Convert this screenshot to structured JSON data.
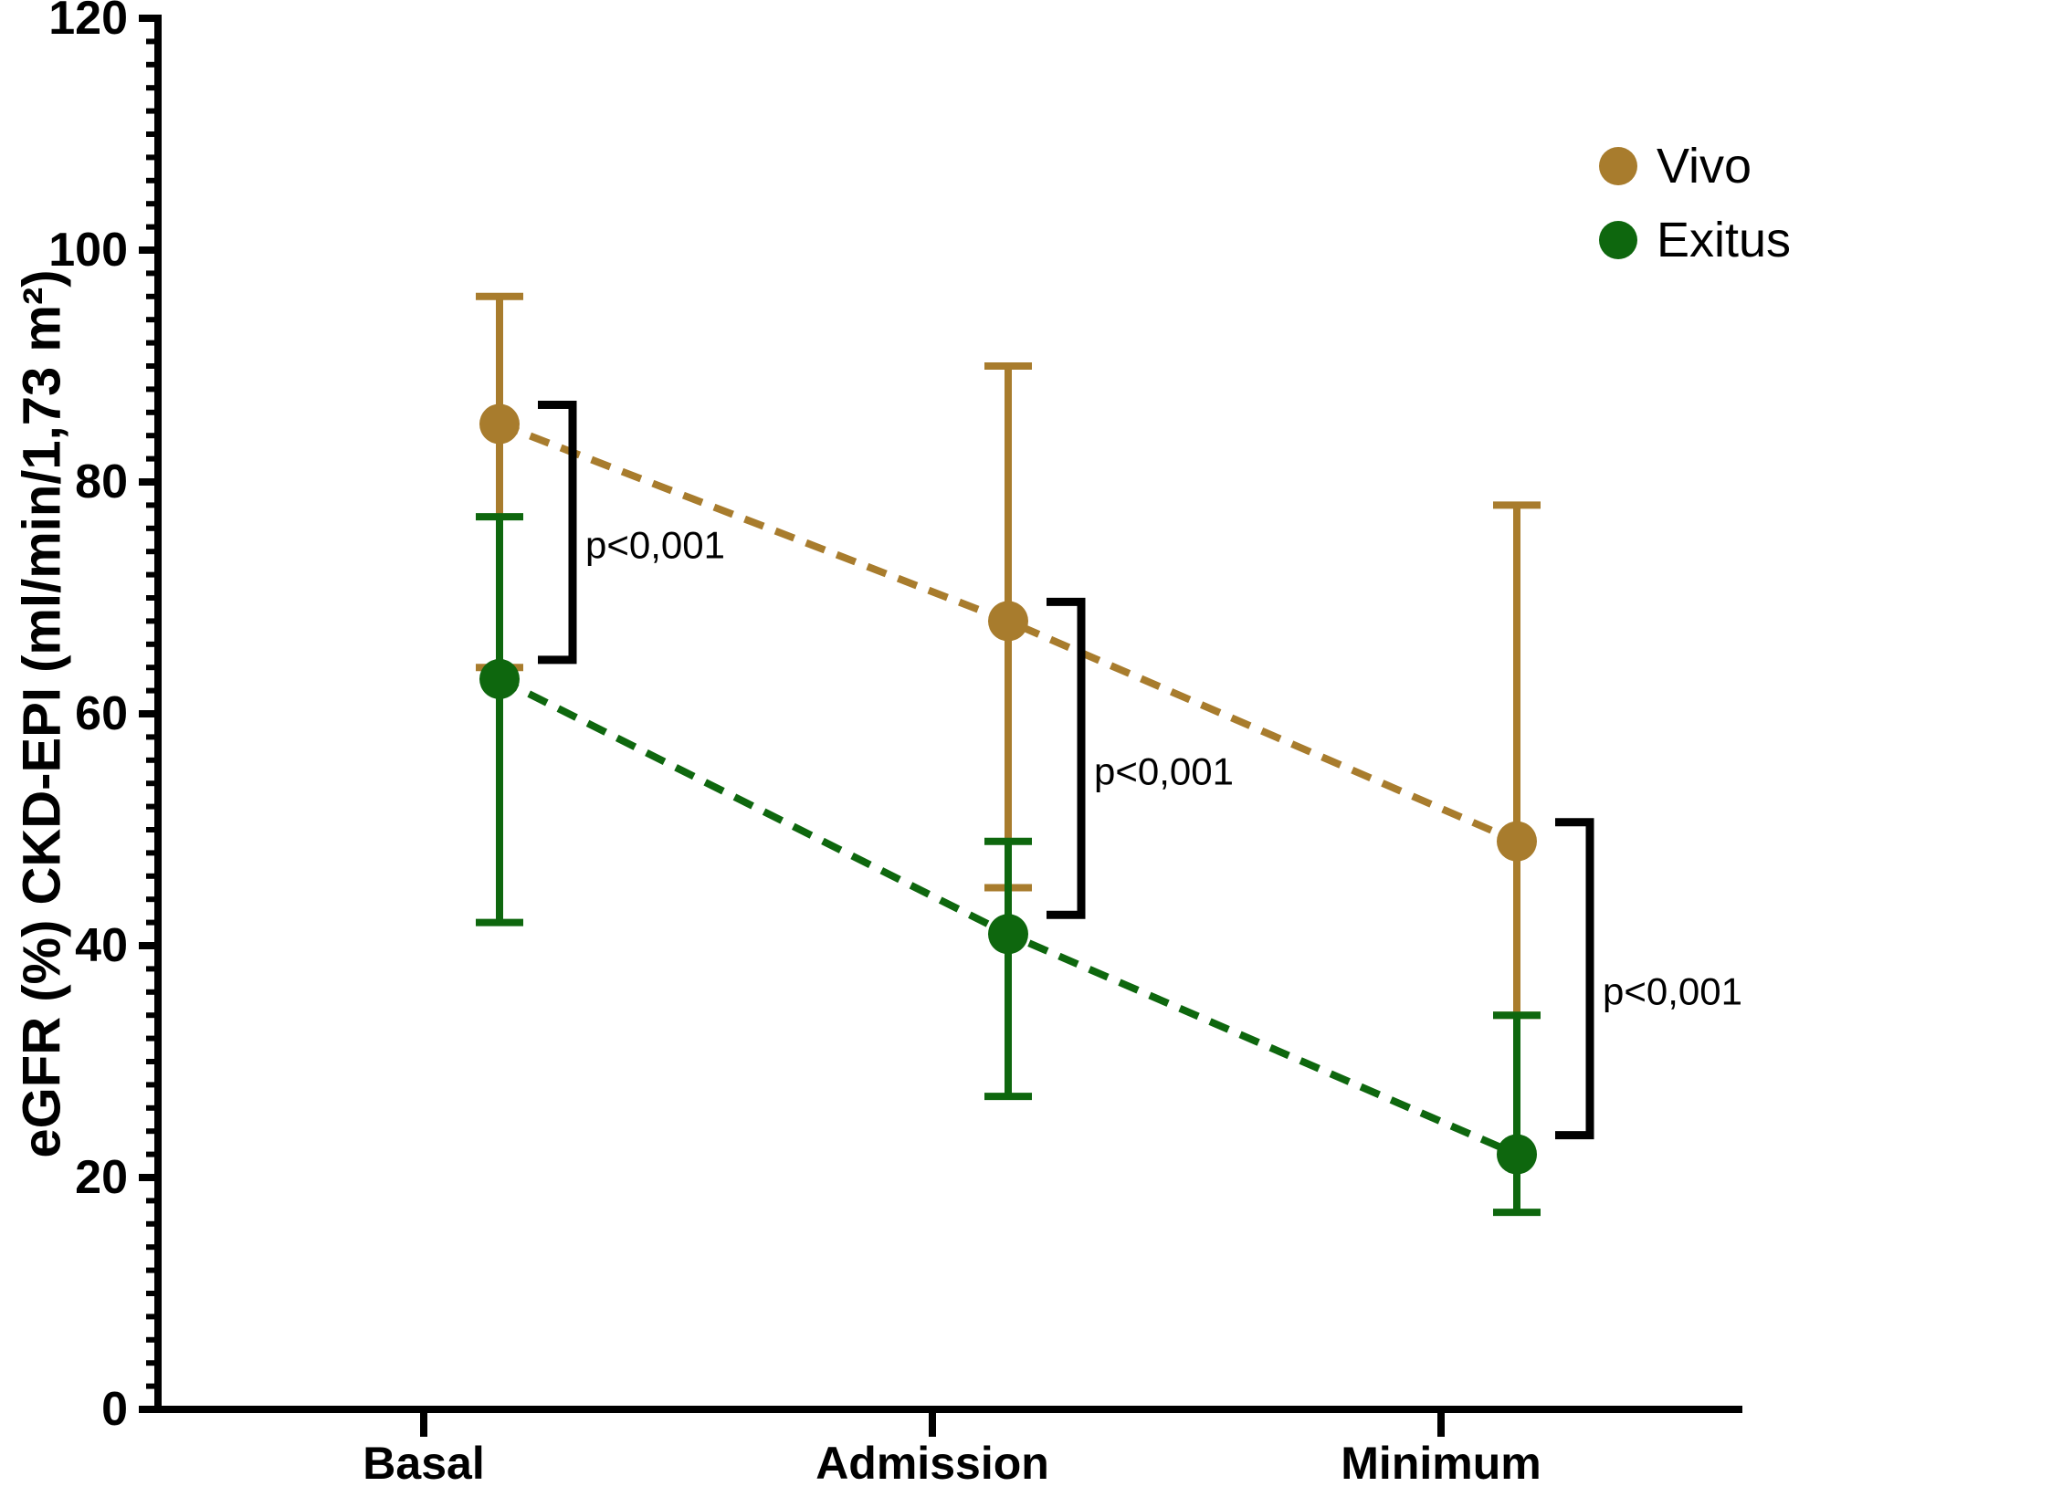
{
  "chart_data": {
    "type": "line",
    "title": "",
    "xlabel": "",
    "ylabel": "eGFR (%) CKD-EPI (ml/min/1,73 m²)",
    "ylim": [
      0,
      120
    ],
    "yticks": [
      0,
      20,
      40,
      60,
      80,
      100,
      120
    ],
    "y_minor_tick_step": 2,
    "grid": false,
    "legend_position": "top-right",
    "categories": [
      "Basal",
      "Admission",
      "Minimum"
    ],
    "series": [
      {
        "name": "Vivo",
        "color": "#A87C2D",
        "marker": "circle",
        "line_style": "dashed",
        "values": [
          85,
          68,
          49
        ],
        "error_upper": [
          96,
          90,
          78
        ],
        "error_lower": [
          64,
          45,
          34
        ]
      },
      {
        "name": "Exitus",
        "color": "#0E670E",
        "marker": "circle",
        "line_style": "dashed",
        "values": [
          63,
          41,
          22
        ],
        "error_upper": [
          77,
          49,
          34
        ],
        "error_lower": [
          42,
          27,
          17
        ]
      }
    ],
    "annotations": [
      {
        "category": "Basal",
        "label": "p<0,001"
      },
      {
        "category": "Admission",
        "label": "p<0,001"
      },
      {
        "category": "Minimum",
        "label": "p<0,001"
      }
    ],
    "axis_color": "#000000",
    "background": "#ffffff"
  }
}
